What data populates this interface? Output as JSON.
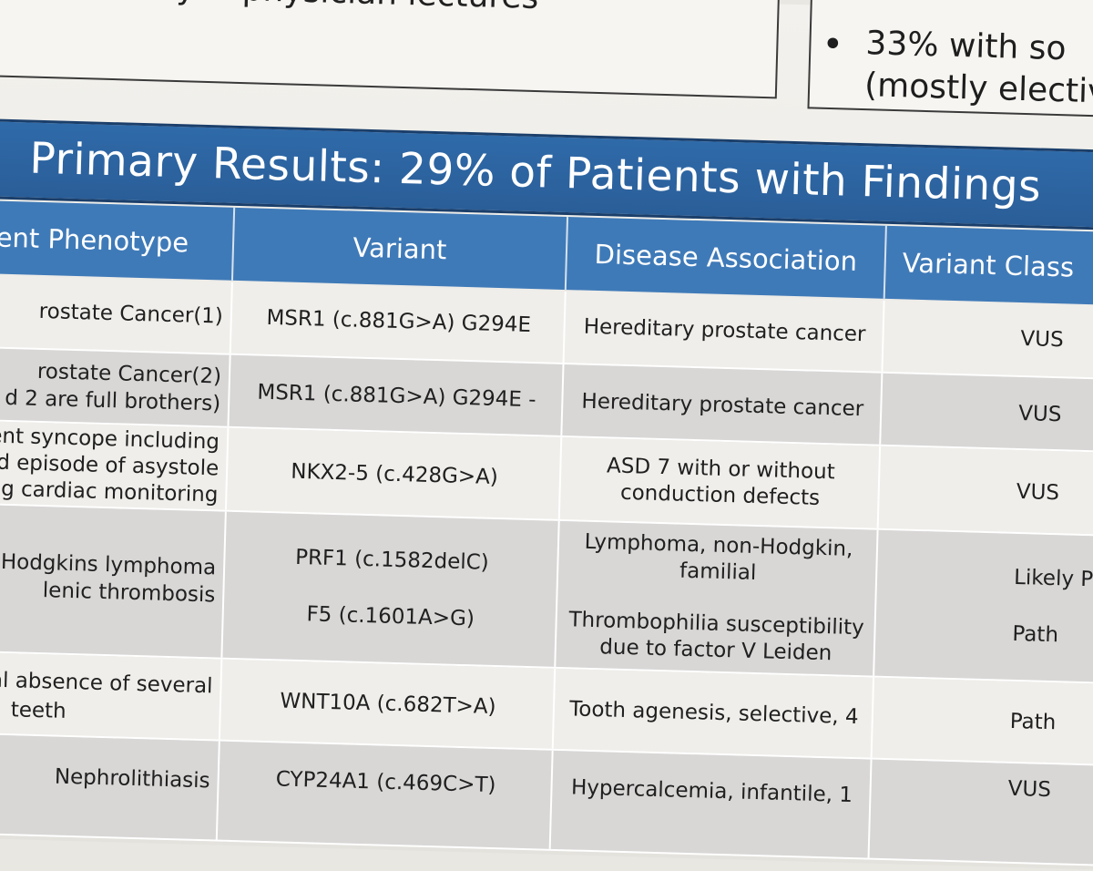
{
  "top_boxes": {
    "left_fragment": "community & physician lectures",
    "right_bullet": "•",
    "right_line1": "33% with so",
    "right_line2": "(mostly electiv"
  },
  "banner": {
    "title": "Primary Results: 29% of Patients with Findings"
  },
  "table": {
    "headers": [
      "ent Phenotype",
      "Variant",
      "Disease Association",
      "Variant Class"
    ],
    "rows": [
      {
        "phenotype": "rostate Cancer(1)",
        "variant": "MSR1 (c.881G>A) G294E",
        "disease": "Hereditary prostate cancer",
        "class": "VUS"
      },
      {
        "phenotype_1": "rostate Cancer(2)",
        "phenotype_2": "d 2 are full brothers)",
        "variant": "MSR1 (c.881G>A) G294E -",
        "disease": "Hereditary prostate cancer",
        "class": "VUS"
      },
      {
        "phenotype_1": "ent syncope including",
        "phenotype_2": "nd episode of asystole",
        "phenotype_3": "g cardiac monitoring",
        "variant": "NKX2-5 (c.428G>A)",
        "disease_1": "ASD 7 with or without",
        "disease_2": "conduction defects",
        "class": "VUS"
      },
      {
        "phenotype_1": "Hodgkins lymphoma",
        "phenotype_2": "lenic thrombosis",
        "variant_a": "PRF1 (c.1582delC)",
        "disease_a1": "Lymphoma, non-Hodgkin,",
        "disease_a2": "familial",
        "class_a": "Likely Pa",
        "variant_b": "F5 (c.1601A>G)",
        "disease_b1": "Thrombophilia susceptibility",
        "disease_b2": "due to factor V Leiden",
        "class_b": "Path"
      },
      {
        "phenotype_1": "tal absence of several",
        "phenotype_2": "teeth",
        "variant": "WNT10A (c.682T>A)",
        "disease": "Tooth agenesis, selective, 4",
        "class": "Path"
      },
      {
        "phenotype": "Nephrolithiasis",
        "variant": "CYP24A1 (c.469C>T)",
        "disease": "Hypercalcemia, infantile, 1",
        "class": "VUS"
      }
    ]
  },
  "colors": {
    "banner_blue": "#2f6aa9",
    "header_blue": "#3f7ab8",
    "row_light": "#efeeea",
    "row_dark": "#d8d7d6"
  }
}
